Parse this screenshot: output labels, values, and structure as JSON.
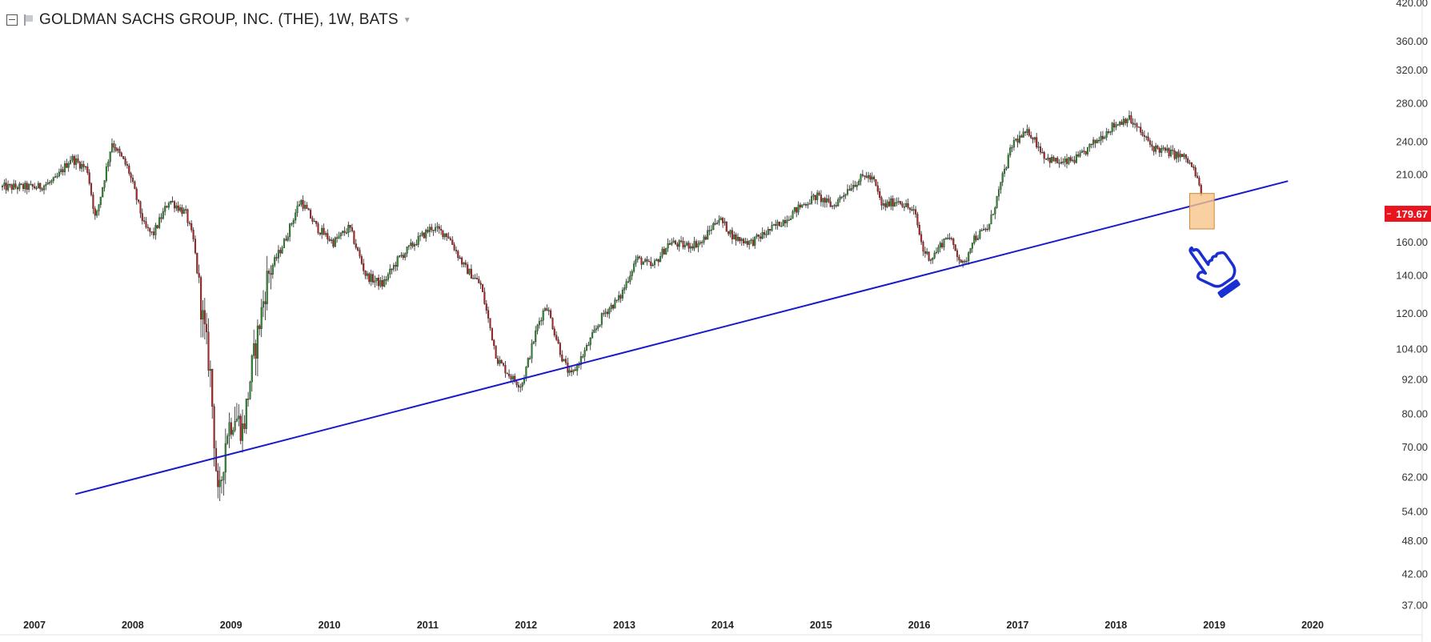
{
  "header": {
    "symbol_title": "GOLDMAN SACHS GROUP, INC. (THE), 1W, BATS"
  },
  "colors": {
    "up_candle": "#2e8b2e",
    "down_candle": "#b22222",
    "trendline": "#1a1ac8",
    "highlight_fill": "#f7c48a",
    "price_tag_bg": "#e8141e",
    "hand_outline": "#1a2fd1"
  },
  "icons": [
    "collapse-icon",
    "flag-icon",
    "dropdown-arrow-icon",
    "pointing-hand-icon"
  ],
  "chart_data": {
    "type": "candlestick",
    "title": "GOLDMAN SACHS GROUP, INC. (THE), 1W, BATS",
    "xlabel": "",
    "ylabel": "",
    "y_scale": "log",
    "ylim": [
      33,
      420
    ],
    "xlim": [
      "2006-12-20",
      "2020-01-01"
    ],
    "y_ticks": [
      "420.00",
      "360.00",
      "320.00",
      "280.00",
      "240.00",
      "210.00",
      "160.00",
      "140.00",
      "120.00",
      "104.00",
      "92.00",
      "80.00",
      "70.00",
      "62.00",
      "54.00",
      "48.00",
      "42.00",
      "37.00"
    ],
    "x_ticks": [
      "2007",
      "2008",
      "2009",
      "2010",
      "2011",
      "2012",
      "2013",
      "2014",
      "2015",
      "2016",
      "2017",
      "2018",
      "2019",
      "2020"
    ],
    "last_price_label": "179.67",
    "grid": false,
    "series": [
      {
        "points": [
          {
            "x": "2007-01",
            "close": 200
          },
          {
            "x": "2007-03",
            "close": 205
          },
          {
            "x": "2007-05",
            "close": 225
          },
          {
            "x": "2007-07",
            "close": 215
          },
          {
            "x": "2007-08",
            "close": 175
          },
          {
            "x": "2007-10",
            "close": 240
          },
          {
            "x": "2007-12",
            "close": 215
          },
          {
            "x": "2008-02",
            "close": 170
          },
          {
            "x": "2008-03",
            "close": 165
          },
          {
            "x": "2008-05",
            "close": 190
          },
          {
            "x": "2008-07",
            "close": 180
          },
          {
            "x": "2008-08",
            "close": 160
          },
          {
            "x": "2008-09",
            "close": 120
          },
          {
            "x": "2008-10",
            "close": 95
          },
          {
            "x": "2008-11",
            "close": 55
          },
          {
            "x": "2008-12",
            "close": 75
          },
          {
            "x": "2009-01",
            "close": 80
          },
          {
            "x": "2009-02",
            "close": 75
          },
          {
            "x": "2009-03",
            "close": 95
          },
          {
            "x": "2009-05",
            "close": 140
          },
          {
            "x": "2009-07",
            "close": 160
          },
          {
            "x": "2009-09",
            "close": 190
          },
          {
            "x": "2009-11",
            "close": 170
          },
          {
            "x": "2010-01",
            "close": 160
          },
          {
            "x": "2010-03",
            "close": 170
          },
          {
            "x": "2010-05",
            "close": 140
          },
          {
            "x": "2010-07",
            "close": 135
          },
          {
            "x": "2010-09",
            "close": 150
          },
          {
            "x": "2010-11",
            "close": 160
          },
          {
            "x": "2011-01",
            "close": 170
          },
          {
            "x": "2011-03",
            "close": 165
          },
          {
            "x": "2011-05",
            "close": 145
          },
          {
            "x": "2011-07",
            "close": 135
          },
          {
            "x": "2011-09",
            "close": 100
          },
          {
            "x": "2011-11",
            "close": 92
          },
          {
            "x": "2011-12",
            "close": 90
          },
          {
            "x": "2012-02",
            "close": 115
          },
          {
            "x": "2012-03",
            "close": 125
          },
          {
            "x": "2012-05",
            "close": 100
          },
          {
            "x": "2012-06",
            "close": 93
          },
          {
            "x": "2012-08",
            "close": 105
          },
          {
            "x": "2012-10",
            "close": 120
          },
          {
            "x": "2012-12",
            "close": 128
          },
          {
            "x": "2013-02",
            "close": 150
          },
          {
            "x": "2013-04",
            "close": 145
          },
          {
            "x": "2013-06",
            "close": 160
          },
          {
            "x": "2013-08",
            "close": 158
          },
          {
            "x": "2013-10",
            "close": 160
          },
          {
            "x": "2013-12",
            "close": 177
          },
          {
            "x": "2014-02",
            "close": 163
          },
          {
            "x": "2014-04",
            "close": 160
          },
          {
            "x": "2014-06",
            "close": 167
          },
          {
            "x": "2014-08",
            "close": 175
          },
          {
            "x": "2014-10",
            "close": 185
          },
          {
            "x": "2014-12",
            "close": 193
          },
          {
            "x": "2015-02",
            "close": 185
          },
          {
            "x": "2015-04",
            "close": 200
          },
          {
            "x": "2015-06",
            "close": 210
          },
          {
            "x": "2015-07",
            "close": 205
          },
          {
            "x": "2015-08",
            "close": 185
          },
          {
            "x": "2015-10",
            "close": 190
          },
          {
            "x": "2015-12",
            "close": 180
          },
          {
            "x": "2016-01",
            "close": 155
          },
          {
            "x": "2016-02",
            "close": 150
          },
          {
            "x": "2016-04",
            "close": 165
          },
          {
            "x": "2016-06",
            "close": 145
          },
          {
            "x": "2016-07",
            "close": 162
          },
          {
            "x": "2016-09",
            "close": 170
          },
          {
            "x": "2016-11",
            "close": 215
          },
          {
            "x": "2016-12",
            "close": 240
          },
          {
            "x": "2017-02",
            "close": 250
          },
          {
            "x": "2017-04",
            "close": 225
          },
          {
            "x": "2017-06",
            "close": 220
          },
          {
            "x": "2017-08",
            "close": 225
          },
          {
            "x": "2017-10",
            "close": 240
          },
          {
            "x": "2017-12",
            "close": 255
          },
          {
            "x": "2018-02",
            "close": 265
          },
          {
            "x": "2018-03",
            "close": 255
          },
          {
            "x": "2018-05",
            "close": 235
          },
          {
            "x": "2018-07",
            "close": 230
          },
          {
            "x": "2018-09",
            "close": 225
          },
          {
            "x": "2018-10",
            "close": 215
          },
          {
            "x": "2018-11",
            "close": 195
          },
          {
            "x": "2018-12",
            "close": 179.67
          }
        ]
      }
    ],
    "annotations": [
      {
        "type": "trendline",
        "from": {
          "x": "2007-06",
          "y": 58
        },
        "to": {
          "x": "2019-10",
          "y": 205
        }
      },
      {
        "type": "highlight_box",
        "x0": "2018-10",
        "x1": "2019-01",
        "y0": 169,
        "y1": 195
      },
      {
        "type": "pointing_hand_icon",
        "x": "2019-01",
        "y": 145
      }
    ]
  }
}
